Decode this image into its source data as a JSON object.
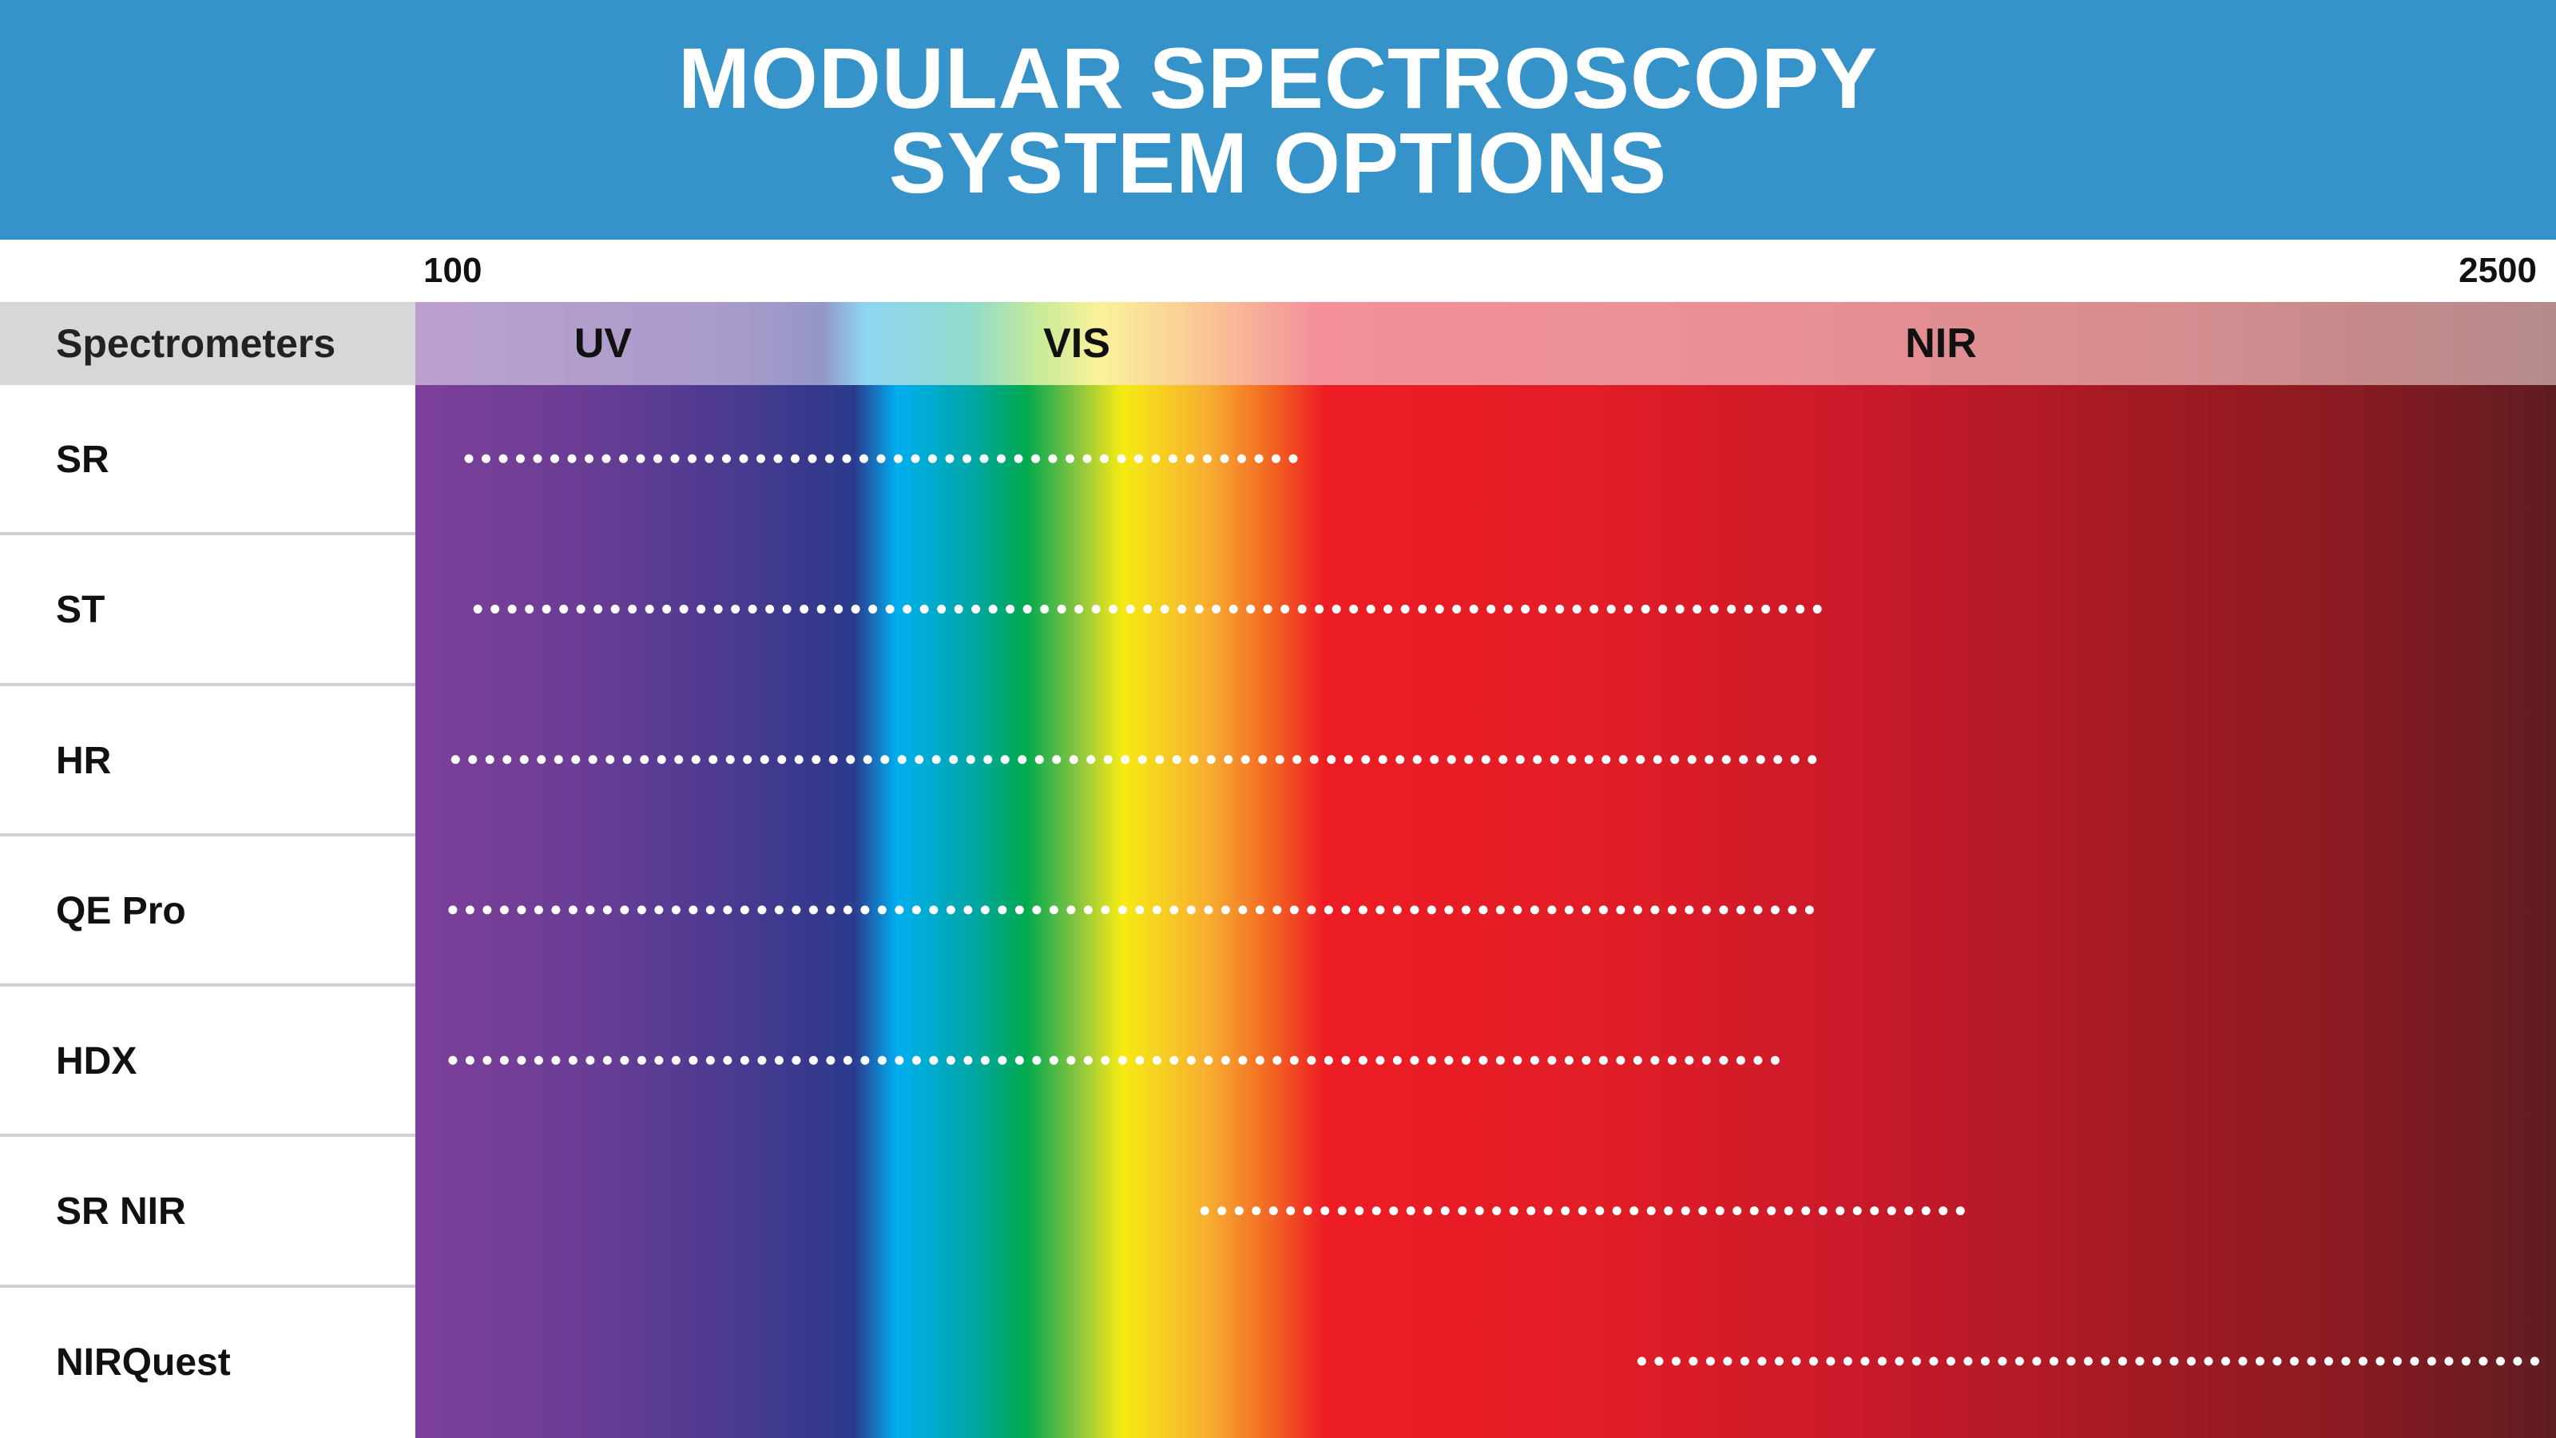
{
  "header": {
    "title_line1": "MODULAR SPECTROSCOPY",
    "title_line2": "SYSTEM OPTIONS",
    "background": "#3593c9"
  },
  "chart_data": {
    "type": "range",
    "title": "MODULAR SPECTROSCOPY SYSTEM OPTIONS",
    "x_axis": {
      "min": 100,
      "max": 2500,
      "tick_labels": [
        "100",
        "2500"
      ]
    },
    "row_header": "Spectrometers",
    "bands": [
      {
        "label": "UV",
        "center": 290
      },
      {
        "label": "VIS",
        "center": 650
      },
      {
        "label": "NIR",
        "center": 1310
      }
    ],
    "series": [
      {
        "name": "SR",
        "start": 160,
        "end": 1100
      },
      {
        "name": "ST",
        "start": 170,
        "end": 1675
      },
      {
        "name": "HR",
        "start": 145,
        "end": 1685
      },
      {
        "name": "QE Pro",
        "start": 142,
        "end": 1682
      },
      {
        "name": "HDX",
        "start": 142,
        "end": 1625
      },
      {
        "name": "SR NIR",
        "start": 985,
        "end": 1845
      },
      {
        "name": "NIRQuest",
        "start": 1475,
        "end": 2505
      }
    ],
    "marker_color": "#ffffff"
  }
}
